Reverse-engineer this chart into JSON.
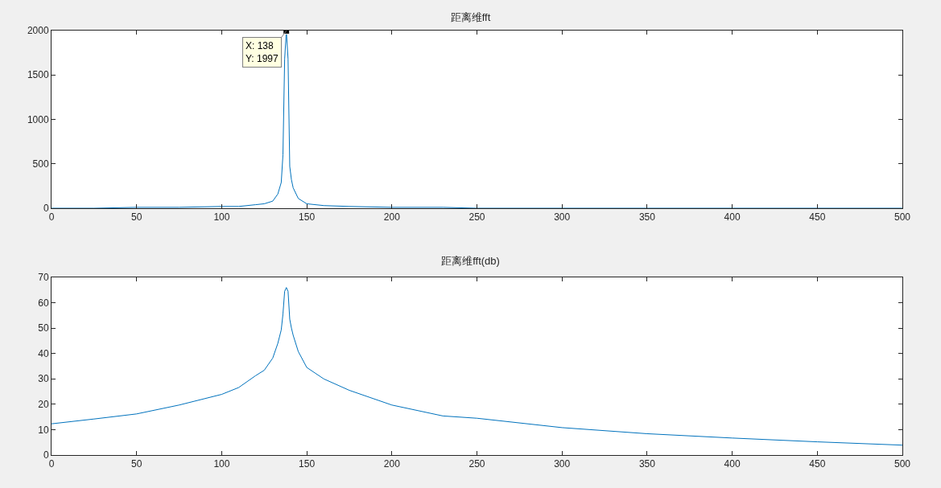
{
  "chart_data": [
    {
      "type": "line",
      "title": "距离维fft",
      "x": [
        0,
        25,
        50,
        75,
        100,
        110,
        120,
        125,
        130,
        133,
        135,
        136,
        137,
        138,
        139,
        140,
        141,
        142,
        145,
        150,
        160,
        175,
        200,
        230,
        250,
        300,
        350,
        400,
        450,
        500
      ],
      "series": [
        {
          "color": "#0072bd",
          "values": [
            0,
            0,
            10,
            10,
            20,
            20,
            40,
            50,
            80,
            160,
            290,
            600,
            1680,
            1997,
            1680,
            470,
            320,
            230,
            110,
            50,
            30,
            20,
            10,
            10,
            0,
            0,
            0,
            0,
            0,
            0
          ]
        }
      ],
      "xlim": [
        0,
        500
      ],
      "xticks": [
        0,
        50,
        100,
        150,
        200,
        250,
        300,
        350,
        400,
        450,
        500
      ],
      "ylim": [
        0,
        2000
      ],
      "yticks": [
        0,
        500,
        1000,
        1500,
        2000
      ],
      "grid": false,
      "line_style": "solid",
      "marker": "none",
      "annotations": [
        {
          "text": "X: 138\nY: 1997",
          "x": 138,
          "y": 1997
        }
      ]
    },
    {
      "type": "line",
      "title": "距离维fft(db)",
      "x": [
        0,
        25,
        50,
        75,
        100,
        110,
        120,
        125,
        130,
        133,
        135,
        136,
        137,
        138,
        139,
        140,
        141,
        142,
        145,
        150,
        160,
        175,
        200,
        230,
        250,
        300,
        350,
        400,
        450,
        500
      ],
      "series": [
        {
          "color": "#0072bd",
          "values": [
            12.3,
            14.2,
            16.2,
            19.7,
            23.9,
            26.6,
            31.3,
            33.4,
            38.2,
            44,
            49.3,
            55.5,
            64.5,
            66.0,
            64.5,
            53.5,
            50,
            47.2,
            40.8,
            34.5,
            30,
            25.5,
            19.7,
            15.4,
            14.5,
            10.8,
            8.4,
            6.7,
            5.2,
            3.9
          ]
        }
      ],
      "xlim": [
        0,
        500
      ],
      "xticks": [
        0,
        50,
        100,
        150,
        200,
        250,
        300,
        350,
        400,
        450,
        500
      ],
      "ylim": [
        0,
        70
      ],
      "yticks": [
        0,
        10,
        20,
        30,
        40,
        50,
        60,
        70
      ],
      "grid": false,
      "line_style": "solid",
      "marker": "none"
    }
  ]
}
